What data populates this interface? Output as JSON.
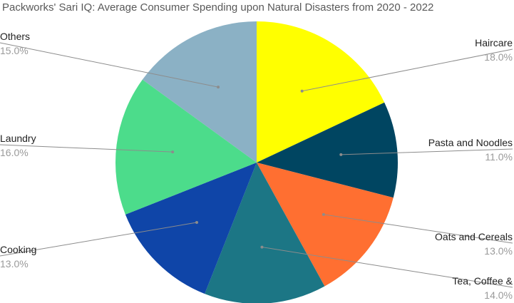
{
  "chart_data": {
    "type": "pie",
    "title": "Packworks' Sari IQ: Average Consumer Spending upon Natural Disasters from 2020 - 2022",
    "start_angle_deg": 0,
    "direction": "clockwise",
    "legend": "none",
    "slices": [
      {
        "name": "Haircare",
        "value": 18.0,
        "label": "18.0%",
        "color": "#ffff00",
        "label_side": "right"
      },
      {
        "name": "Pasta and Noodles",
        "value": 11.0,
        "label": "11.0%",
        "color": "#004561",
        "label_side": "right"
      },
      {
        "name": "Oats and Cereals",
        "value": 13.0,
        "label": "13.0%",
        "color": "#ff6f31",
        "label_side": "right"
      },
      {
        "name": "Tea, Coffee &",
        "value": 14.0,
        "label": "14.0%",
        "color": "#1c7685",
        "label_side": "right"
      },
      {
        "name": "Cooking",
        "value": 13.0,
        "label": "13.0%",
        "color": "#0f45a8",
        "label_side": "left"
      },
      {
        "name": "Laundry",
        "value": 16.0,
        "label": "16.0%",
        "color": "#4cdc8b",
        "label_side": "left"
      },
      {
        "name": "Others",
        "value": 15.0,
        "label": "15.0%",
        "color": "#8bb1c5",
        "label_side": "left"
      }
    ]
  }
}
